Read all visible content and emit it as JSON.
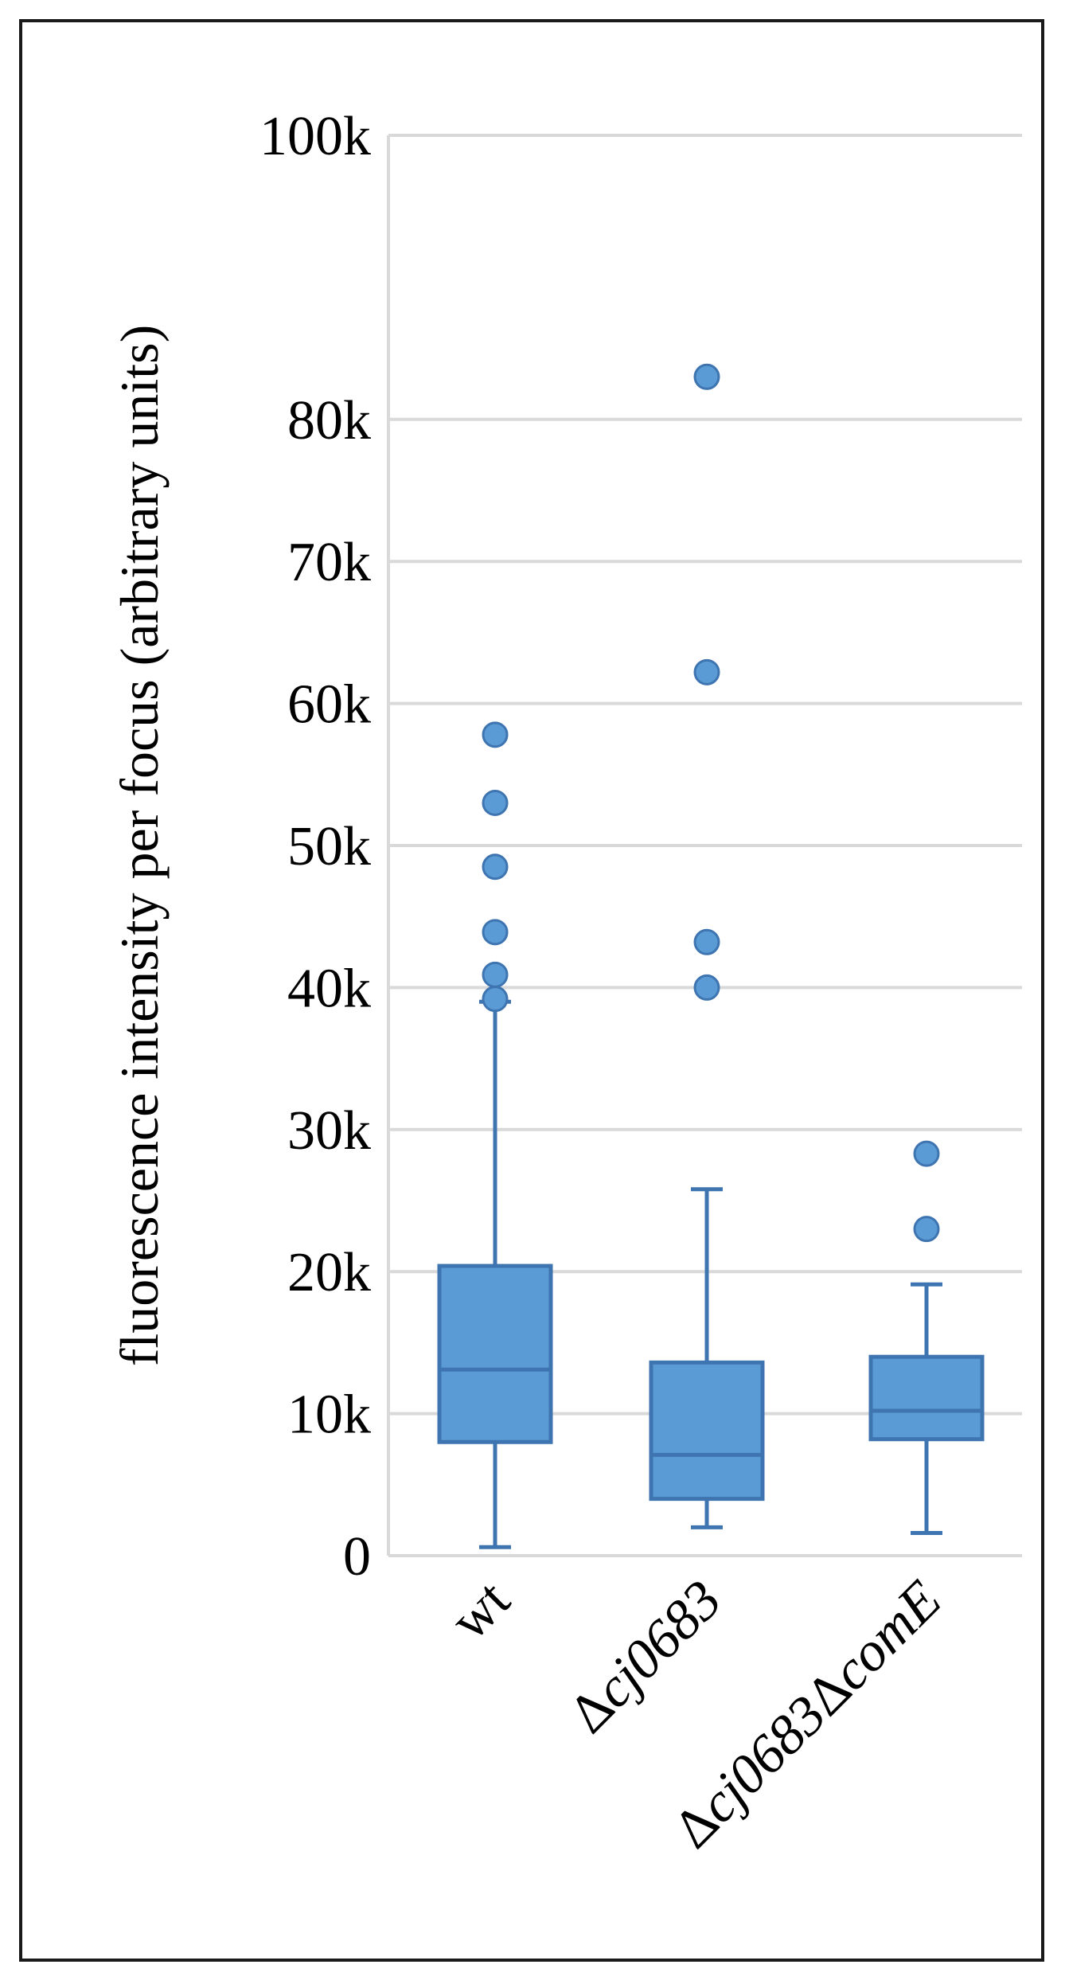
{
  "chart_data": {
    "type": "box",
    "title": "",
    "xlabel": "",
    "ylabel": "fluorescence intensity per focus (arbitrary units)",
    "ylim": [
      0,
      100000
    ],
    "yticks": [
      {
        "value": 0,
        "label": "0"
      },
      {
        "value": 10000,
        "label": "10k"
      },
      {
        "value": 20000,
        "label": "20k"
      },
      {
        "value": 30000,
        "label": "30k"
      },
      {
        "value": 40000,
        "label": "40k"
      },
      {
        "value": 50000,
        "label": "50k"
      },
      {
        "value": 60000,
        "label": "60k"
      },
      {
        "value": 70000,
        "label": "70k"
      },
      {
        "value": 80000,
        "label": "80k"
      },
      {
        "value": 100000,
        "label": "100k"
      }
    ],
    "grid": true,
    "colors": {
      "box_fill": "#5b9bd5",
      "box_stroke": "#3e75b0",
      "grid": "#d9d9d9"
    },
    "categories": [
      {
        "label_parts": [
          {
            "text": "wt",
            "italic": false
          }
        ],
        "whisker_low": 600,
        "q1": 8000,
        "median": 13100,
        "q3": 20400,
        "whisker_high": 39000,
        "outliers": [
          39200,
          40900,
          43900,
          48500,
          53000,
          57800
        ]
      },
      {
        "label_parts": [
          {
            "text": "Δ",
            "italic": false
          },
          {
            "text": "cj0683",
            "italic": true
          }
        ],
        "whisker_low": 2000,
        "q1": 4000,
        "median": 7100,
        "q3": 13600,
        "whisker_high": 25800,
        "outliers": [
          40000,
          43200,
          62200,
          83000
        ]
      },
      {
        "label_parts": [
          {
            "text": "Δ",
            "italic": false
          },
          {
            "text": "cj0683",
            "italic": true
          },
          {
            "text": "Δ",
            "italic": false
          },
          {
            "text": "comE",
            "italic": true
          }
        ],
        "whisker_low": 1600,
        "q1": 8200,
        "median": 10200,
        "q3": 14000,
        "whisker_high": 19100,
        "outliers": [
          23000,
          28300
        ]
      }
    ]
  }
}
